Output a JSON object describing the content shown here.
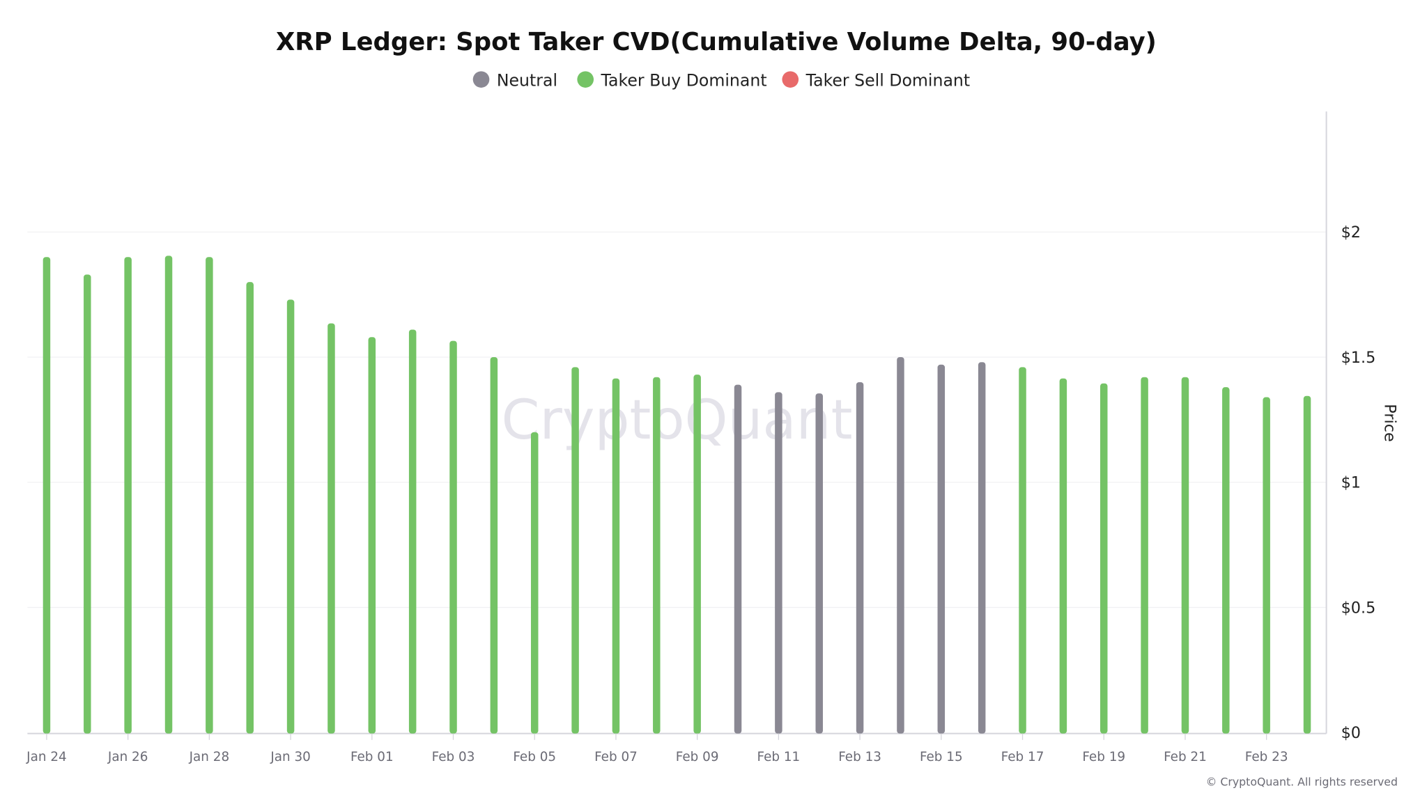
{
  "chart_data": {
    "type": "bar",
    "title": "XRP Ledger: Spot Taker CVD(Cumulative Volume Delta, 90-day)",
    "ylabel": "Price",
    "ylim": [
      0,
      2.45
    ],
    "yticks": [
      0,
      0.5,
      1,
      1.5,
      2
    ],
    "ytick_labels": [
      "$0",
      "$0.5",
      "$1",
      "$1.5",
      "$2"
    ],
    "grid": true,
    "legend_position": "top-center",
    "legend": [
      {
        "name": "Neutral",
        "color": "#8a8893"
      },
      {
        "name": "Taker Buy Dominant",
        "color": "#74c365"
      },
      {
        "name": "Taker Sell Dominant",
        "color": "#e86a6a"
      }
    ],
    "categories": [
      "Jan 24",
      "Jan 25",
      "Jan 26",
      "Jan 27",
      "Jan 28",
      "Jan 29",
      "Jan 30",
      "Jan 31",
      "Feb 01",
      "Feb 02",
      "Feb 03",
      "Feb 04",
      "Feb 05",
      "Feb 06",
      "Feb 07",
      "Feb 08",
      "Feb 09",
      "Feb 10",
      "Feb 11",
      "Feb 12",
      "Feb 13",
      "Feb 14",
      "Feb 15",
      "Feb 16",
      "Feb 17",
      "Feb 18",
      "Feb 19",
      "Feb 20",
      "Feb 21",
      "Feb 22",
      "Feb 23",
      "Feb 24"
    ],
    "values": [
      1.9,
      1.83,
      1.9,
      1.905,
      1.9,
      1.8,
      1.73,
      1.635,
      1.58,
      1.61,
      1.565,
      1.5,
      1.2,
      1.46,
      1.415,
      1.42,
      1.43,
      1.39,
      1.36,
      1.355,
      1.4,
      1.5,
      1.47,
      1.48,
      1.46,
      1.415,
      1.395,
      1.42,
      1.42,
      1.38,
      1.34,
      1.345
    ],
    "states": [
      "Taker Buy Dominant",
      "Taker Buy Dominant",
      "Taker Buy Dominant",
      "Taker Buy Dominant",
      "Taker Buy Dominant",
      "Taker Buy Dominant",
      "Taker Buy Dominant",
      "Taker Buy Dominant",
      "Taker Buy Dominant",
      "Taker Buy Dominant",
      "Taker Buy Dominant",
      "Taker Buy Dominant",
      "Taker Buy Dominant",
      "Taker Buy Dominant",
      "Taker Buy Dominant",
      "Taker Buy Dominant",
      "Taker Buy Dominant",
      "Neutral",
      "Neutral",
      "Neutral",
      "Neutral",
      "Neutral",
      "Neutral",
      "Neutral",
      "Taker Buy Dominant",
      "Taker Buy Dominant",
      "Taker Buy Dominant",
      "Taker Buy Dominant",
      "Taker Buy Dominant",
      "Taker Buy Dominant",
      "Taker Buy Dominant",
      "Taker Buy Dominant"
    ],
    "xtick_labels": [
      "Jan 24",
      "Jan 26",
      "Jan 28",
      "Jan 30",
      "Feb 01",
      "Feb 03",
      "Feb 05",
      "Feb 07",
      "Feb 09",
      "Feb 11",
      "Feb 13",
      "Feb 15",
      "Feb 17",
      "Feb 19",
      "Feb 21",
      "Feb 23"
    ]
  },
  "watermark": "CryptoQuant",
  "copyright": "© CryptoQuant. All rights reserved"
}
